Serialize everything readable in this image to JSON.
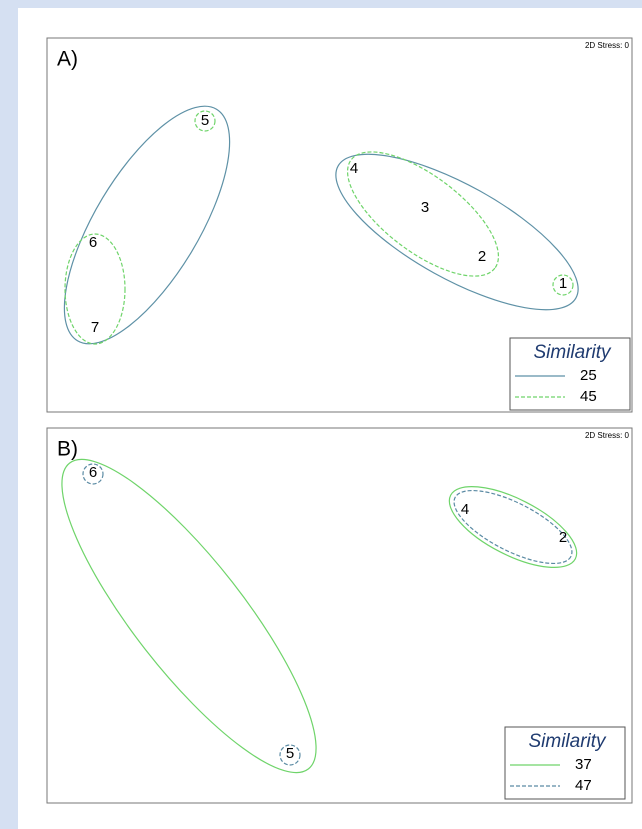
{
  "panels": [
    {
      "label": "A)",
      "stress": "2D Stress: 0",
      "points": [
        "1",
        "2",
        "3",
        "4",
        "5",
        "6",
        "7"
      ],
      "legend": {
        "title": "Similarity",
        "entries": [
          25,
          45
        ]
      }
    },
    {
      "label": "B)",
      "stress": "2D Stress: 0",
      "points": [
        "2",
        "4",
        "5",
        "6"
      ],
      "legend": {
        "title": "Similarity",
        "entries": [
          37,
          47
        ]
      }
    }
  ]
}
